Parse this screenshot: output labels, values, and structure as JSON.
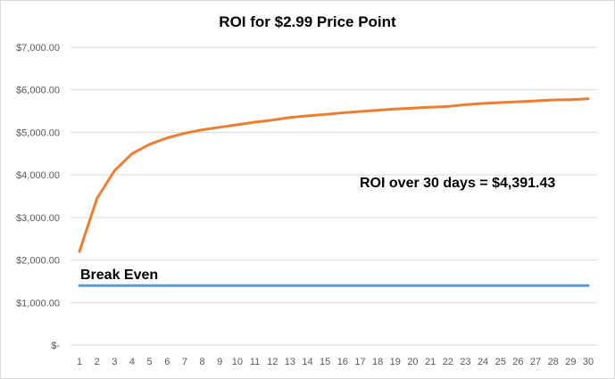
{
  "chart_data": {
    "type": "line",
    "title": "ROI for $2.99 Price Point",
    "xlabel": "",
    "ylabel": "",
    "x": [
      1,
      2,
      3,
      4,
      5,
      6,
      7,
      8,
      9,
      10,
      11,
      12,
      13,
      14,
      15,
      16,
      17,
      18,
      19,
      20,
      21,
      22,
      23,
      24,
      25,
      26,
      27,
      28,
      29,
      30
    ],
    "ylim": [
      0,
      7000
    ],
    "y_ticks": [
      0,
      1000,
      2000,
      3000,
      4000,
      5000,
      6000,
      7000
    ],
    "y_tick_labels": [
      "$-",
      "$1,000.00",
      "$2,000.00",
      "$3,000.00",
      "$4,000.00",
      "$5,000.00",
      "$6,000.00",
      "$7,000.00"
    ],
    "grid": "horizontal",
    "series": [
      {
        "color": "#ed7d31",
        "values": [
          2200,
          3450,
          4100,
          4500,
          4720,
          4870,
          4980,
          5060,
          5120,
          5180,
          5240,
          5290,
          5350,
          5390,
          5420,
          5460,
          5490,
          5520,
          5550,
          5570,
          5590,
          5610,
          5650,
          5680,
          5700,
          5720,
          5740,
          5760,
          5770,
          5790
        ]
      },
      {
        "color": "#5b9bd5",
        "values": [
          1400,
          1400,
          1400,
          1400,
          1400,
          1400,
          1400,
          1400,
          1400,
          1400,
          1400,
          1400,
          1400,
          1400,
          1400,
          1400,
          1400,
          1400,
          1400,
          1400,
          1400,
          1400,
          1400,
          1400,
          1400,
          1400,
          1400,
          1400,
          1400,
          1400
        ]
      }
    ],
    "annotations": {
      "break_even": "Break Even",
      "roi_summary": "ROI over 30 days = $4,391.43"
    }
  }
}
